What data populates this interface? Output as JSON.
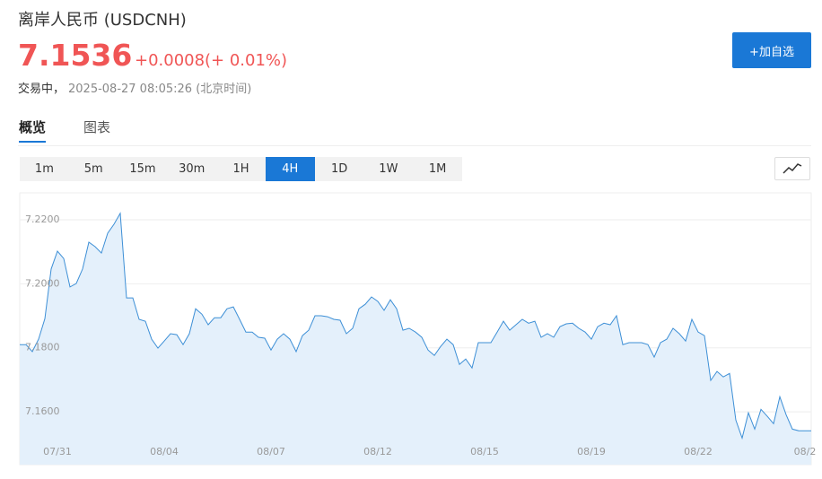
{
  "header": {
    "title": "离岸人民币 (USDCNH)",
    "price": "7.1536",
    "change": "+0.0008",
    "change_pct": "(+ 0.01%)",
    "status": "交易中，",
    "time": "2025-08-27 08:05:26 (北京时间)",
    "button": "+加自选"
  },
  "tabs": [
    "概览",
    "图表"
  ],
  "intervals": {
    "items": [
      "1m",
      "5m",
      "15m",
      "30m",
      "1H",
      "4H",
      "1D",
      "1W",
      "1M"
    ],
    "selected": "4H"
  },
  "chart_data": {
    "type": "area",
    "color": "#3d8fd6",
    "fill": "#e4f0fb",
    "grid": true,
    "ylim": [
      7.1435,
      7.2284
    ],
    "yticks": [
      {
        "value": 7.16,
        "label": "7.1600"
      },
      {
        "value": 7.18,
        "label": "7.1800"
      },
      {
        "value": 7.2,
        "label": "7.2000"
      },
      {
        "value": 7.22,
        "label": "7.2200"
      }
    ],
    "categories": [
      null,
      null,
      null,
      null,
      null,
      null,
      "07/31",
      null,
      null,
      null,
      null,
      null,
      null,
      null,
      null,
      null,
      null,
      null,
      null,
      null,
      null,
      null,
      null,
      "08/04",
      null,
      null,
      null,
      null,
      null,
      null,
      null,
      null,
      null,
      null,
      null,
      null,
      null,
      null,
      null,
      null,
      "08/07",
      null,
      null,
      null,
      null,
      null,
      null,
      null,
      null,
      null,
      null,
      null,
      null,
      null,
      null,
      null,
      null,
      "08/12",
      null,
      null,
      null,
      null,
      null,
      null,
      null,
      null,
      null,
      null,
      null,
      null,
      null,
      null,
      null,
      null,
      "08/15",
      null,
      null,
      null,
      null,
      null,
      null,
      null,
      null,
      null,
      null,
      null,
      null,
      null,
      null,
      null,
      null,
      "08/19",
      null,
      null,
      null,
      null,
      null,
      null,
      null,
      null,
      null,
      null,
      null,
      null,
      null,
      null,
      null,
      null,
      "08/22",
      null,
      null,
      null,
      null,
      null,
      null,
      null,
      null,
      null,
      null,
      null,
      null,
      null,
      null,
      null,
      null,
      "08/2",
      null
    ],
    "values": [
      7.181,
      7.181,
      7.1788,
      7.1827,
      7.1891,
      7.2046,
      7.2102,
      7.2079,
      7.199,
      7.2001,
      7.2046,
      7.213,
      7.2116,
      7.2096,
      7.2158,
      7.2186,
      7.222,
      7.1956,
      7.1956,
      7.1889,
      7.1883,
      7.1827,
      7.1799,
      7.1821,
      7.1844,
      7.1841,
      7.181,
      7.1844,
      7.1922,
      7.1905,
      7.1872,
      7.1894,
      7.1894,
      7.1922,
      7.1928,
      7.1889,
      7.1849,
      7.1849,
      7.1833,
      7.183,
      7.1793,
      7.1827,
      7.1844,
      7.1827,
      7.1788,
      7.1838,
      7.1855,
      7.19,
      7.19,
      7.1897,
      7.1889,
      7.1886,
      7.1844,
      7.1861,
      7.1922,
      7.1936,
      7.1959,
      7.1945,
      7.1917,
      7.195,
      7.1922,
      7.1855,
      7.1861,
      7.1849,
      7.1833,
      7.1793,
      7.1776,
      7.1804,
      7.1827,
      7.181,
      7.1748,
      7.1765,
      7.1737,
      7.1816,
      7.1816,
      7.1816,
      7.1849,
      7.1883,
      7.1855,
      7.1872,
      7.1889,
      7.1877,
      7.1883,
      7.1833,
      7.1844,
      7.1833,
      7.1866,
      7.1875,
      7.1877,
      7.1861,
      7.1849,
      7.1827,
      7.1866,
      7.1877,
      7.1872,
      7.19,
      7.181,
      7.1816,
      7.1816,
      7.1816,
      7.181,
      7.1771,
      7.1816,
      7.1827,
      7.1861,
      7.1844,
      7.1821,
      7.1889,
      7.1849,
      7.1838,
      7.1698,
      7.1726,
      7.1709,
      7.172,
      7.1574,
      7.1518,
      7.1597,
      7.1546,
      7.1608,
      7.1586,
      7.1563,
      7.1647,
      7.1591,
      7.1546,
      7.1541,
      7.1541,
      7.1541
    ]
  }
}
